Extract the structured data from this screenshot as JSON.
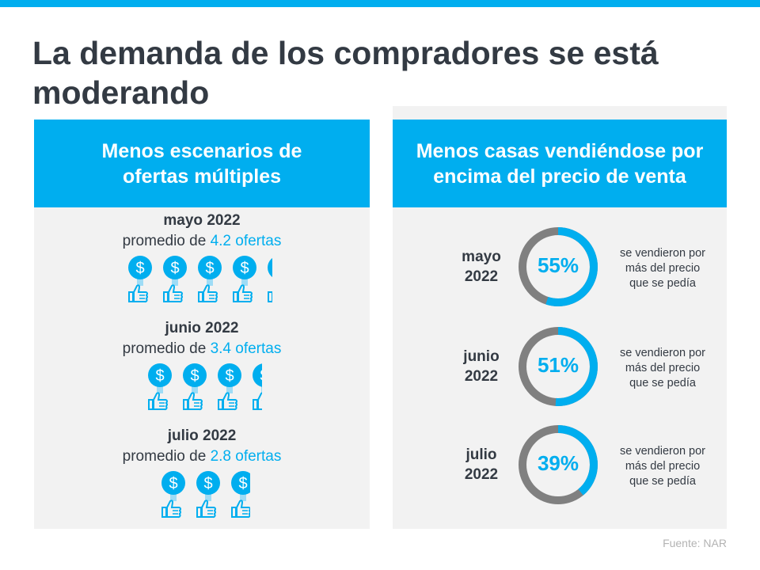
{
  "title": "La demanda de los compradores se está moderando",
  "left_panel": {
    "header": "Menos escenarios de ofertas múltiples",
    "rows": [
      {
        "month": "mayo 2022",
        "avg_prefix": "promedio  de ",
        "avg_value": "4.2 ofertas"
      },
      {
        "month": "junio 2022",
        "avg_prefix": "promedio  de ",
        "avg_value": "3.4 ofertas"
      },
      {
        "month": "julio 2022",
        "avg_prefix": "promedio  de ",
        "avg_value": "2.8 ofertas"
      }
    ]
  },
  "right_panel": {
    "header": "Menos casas vendiéndose por encima del precio de venta",
    "rows": [
      {
        "month": "mayo",
        "year": "2022",
        "percent": "55%",
        "desc": [
          "se vendieron  por",
          "más del precio",
          "que se pedía"
        ]
      },
      {
        "month": "junio",
        "year": "2022",
        "percent": "51%",
        "desc": [
          "se vendieron  por",
          "más del precio",
          "que se pedía"
        ]
      },
      {
        "month": "julio",
        "year": "2022",
        "percent": "39%",
        "desc": [
          "se vendieron  por",
          "más del precio",
          "que se pedía"
        ]
      }
    ]
  },
  "source": "Fuente:  NAR",
  "colors": {
    "accent": "#00aeef",
    "gray": "#808080",
    "text": "#333a43",
    "panel": "#f2f2f2"
  },
  "chart_data": [
    {
      "type": "pictogram",
      "icon": "dollar-thumbs-up-icon",
      "categories": [
        "mayo 2022",
        "junio 2022",
        "julio 2022"
      ],
      "values": [
        4.2,
        3.4,
        2.8
      ]
    },
    {
      "type": "pie",
      "style": "donut",
      "categories": [
        "mayo 2022",
        "junio 2022",
        "julio 2022"
      ],
      "values": [
        55,
        51,
        39
      ],
      "ylim": [
        0,
        100
      ]
    }
  ]
}
